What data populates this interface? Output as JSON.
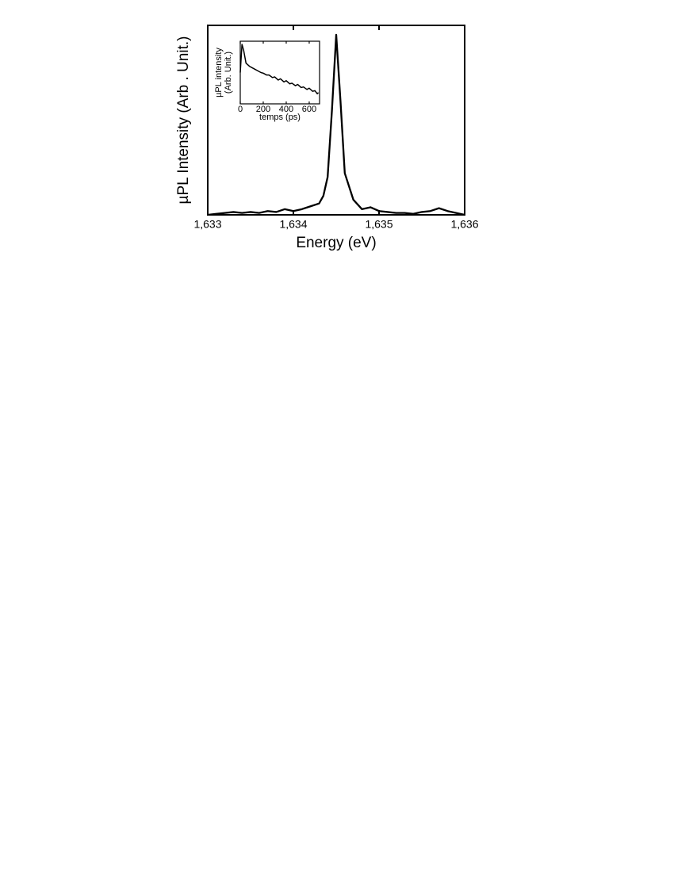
{
  "chart_data": [
    {
      "type": "line",
      "xlabel": "Energy (eV)",
      "ylabel": "µPL Intensity (Arb . Unit.)",
      "xlim": [
        1.633,
        1.636
      ],
      "xticks": [
        {
          "value": 1.633,
          "label": "1,633"
        },
        {
          "value": 1.634,
          "label": "1,634"
        },
        {
          "value": 1.635,
          "label": "1,635"
        },
        {
          "value": 1.636,
          "label": "1,636"
        }
      ],
      "ylim": [
        0,
        1
      ],
      "x": [
        1.633,
        1.6331,
        1.6332,
        1.6333,
        1.6334,
        1.6335,
        1.6336,
        1.6337,
        1.6338,
        1.6339,
        1.634,
        1.6341,
        1.6342,
        1.6343,
        1.63435,
        1.6344,
        1.63445,
        1.6345,
        1.63455,
        1.6346,
        1.6347,
        1.6348,
        1.6349,
        1.635,
        1.6351,
        1.6352,
        1.6353,
        1.6354,
        1.6355,
        1.6356,
        1.6357,
        1.6358,
        1.6359,
        1.636
      ],
      "series": [
        {
          "color": "#000000",
          "values": [
            0.0,
            0.005,
            0.01,
            0.015,
            0.01,
            0.015,
            0.01,
            0.02,
            0.015,
            0.03,
            0.02,
            0.03,
            0.045,
            0.06,
            0.1,
            0.2,
            0.55,
            0.95,
            0.6,
            0.22,
            0.08,
            0.03,
            0.04,
            0.02,
            0.015,
            0.01,
            0.01,
            0.005,
            0.015,
            0.02,
            0.035,
            0.02,
            0.01,
            0.0
          ]
        }
      ]
    },
    {
      "type": "line",
      "xlabel": "temps (ps)",
      "ylabel": [
        "µPL intensity",
        "(Arb. Unit.)"
      ],
      "xlim": [
        0,
        690
      ],
      "xticks": [
        0,
        200,
        400,
        600
      ],
      "ylim": [
        0,
        1
      ],
      "x": [
        0,
        15,
        30,
        50,
        80,
        100,
        130,
        150,
        180,
        200,
        230,
        250,
        280,
        300,
        330,
        350,
        380,
        400,
        430,
        450,
        480,
        500,
        530,
        550,
        580,
        600,
        630,
        650,
        670,
        680
      ],
      "series": [
        {
          "color": "#000000",
          "values": [
            0.5,
            0.95,
            0.85,
            0.65,
            0.6,
            0.58,
            0.55,
            0.53,
            0.5,
            0.49,
            0.46,
            0.46,
            0.42,
            0.43,
            0.38,
            0.4,
            0.35,
            0.37,
            0.32,
            0.33,
            0.29,
            0.31,
            0.26,
            0.27,
            0.23,
            0.25,
            0.2,
            0.21,
            0.16,
            0.18
          ]
        }
      ]
    }
  ]
}
